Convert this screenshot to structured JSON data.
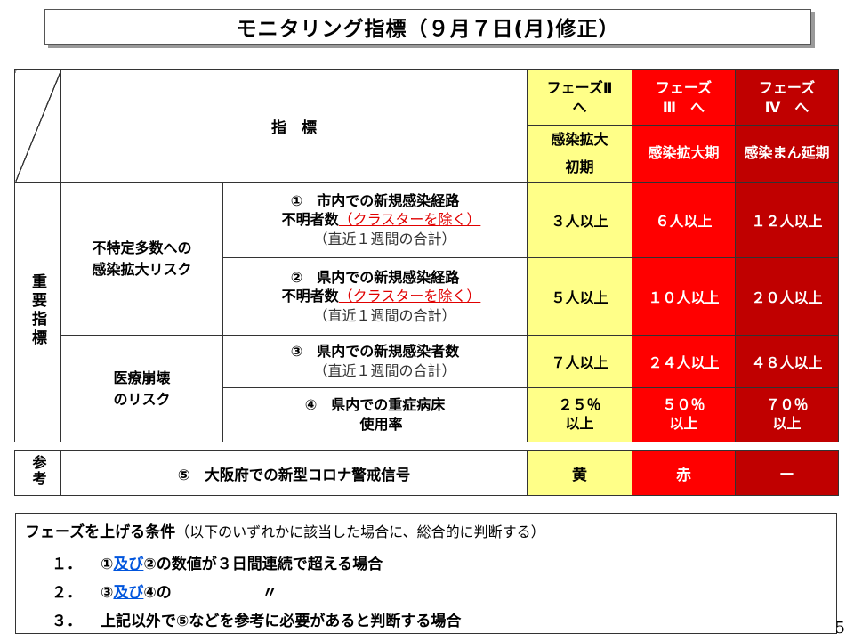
{
  "title": "モニタリング指標（９月７日(月)修正）",
  "table": {
    "indicator_header": "指　標",
    "phases": [
      {
        "line1": "フェーズⅡ",
        "line2": "へ",
        "sub1": "感染拡大",
        "sub2": "初期",
        "color": "#ffff88"
      },
      {
        "line1": "フェーズ",
        "line2": "Ⅲ　へ",
        "sub1": "感染拡大期",
        "sub2": "",
        "color": "#ff0000"
      },
      {
        "line1": "フェーズ",
        "line2": "Ⅳ　へ",
        "sub1": "感染まん延期",
        "sub2": "",
        "color": "#c00000"
      }
    ],
    "section_label": "重要指標",
    "groups": [
      {
        "label1": "不特定多数への",
        "label2": "感染拡大リスク"
      },
      {
        "label1": "医療崩壊",
        "label2": "のリスク"
      }
    ],
    "rows": [
      {
        "num": "①",
        "text1": "市内での新規感染経路",
        "text2": "不明者数",
        "note_red": "（クラスターを除く）",
        "paren": "（直近１週間の合計）",
        "values": [
          "３人以上",
          "６人以上",
          "１２人以上"
        ]
      },
      {
        "num": "②",
        "text1": "県内での新規感染経路",
        "text2": "不明者数",
        "note_red": "（クラスターを除く）",
        "paren": "（直近１週間の合計）",
        "values": [
          "５人以上",
          "１０人以上",
          "２０人以上"
        ]
      },
      {
        "num": "③",
        "text1": "県内での新規感染者数",
        "text2": "",
        "note_red": "",
        "paren": "（直近１週間の合計）",
        "values": [
          "７人以上",
          "２４人以上",
          "４８人以上"
        ]
      },
      {
        "num": "④",
        "text1": "県内での重症病床",
        "text2": "使用率",
        "note_red": "",
        "paren": "",
        "values": [
          "２５％",
          "５０％",
          "７０％"
        ],
        "values_line2": [
          "以上",
          "以上",
          "以上"
        ]
      }
    ]
  },
  "reference": {
    "label": "参考",
    "item": "⑤　大阪府での新型コロナ警戒信号",
    "values": [
      "黄",
      "赤",
      "ー"
    ]
  },
  "conditions": {
    "heading": "フェーズを上げる条件",
    "heading_note": "（以下のいずれかに該当した場合に、総合的に判断する）",
    "items": [
      {
        "num": "１．",
        "pre": "①",
        "link": "及び",
        "post": "②の数値が３日間連続で超える場合"
      },
      {
        "num": "２．",
        "pre": "③",
        "link": "及び",
        "post": "④の　　　　　　〃"
      },
      {
        "num": "３．",
        "pre": "上記以外で⑤などを参考に必要があると判断する場合",
        "link": "",
        "post": ""
      }
    ]
  },
  "page_number": "5"
}
